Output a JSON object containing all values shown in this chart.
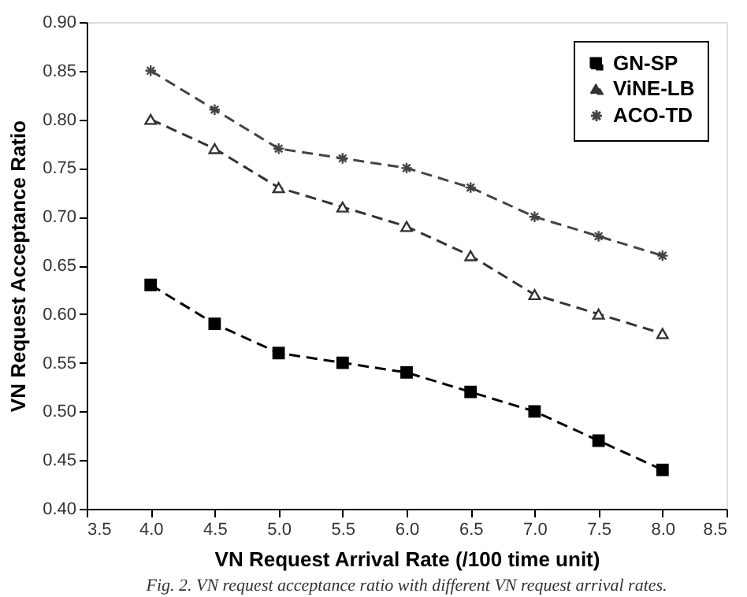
{
  "chart_data": {
    "type": "line",
    "x": [
      4.0,
      4.5,
      5.0,
      5.5,
      6.0,
      6.5,
      7.0,
      7.5,
      8.0
    ],
    "series": [
      {
        "name": "GN-SP",
        "color": "#000000",
        "marker": "square",
        "line_style": "dashed",
        "values": [
          0.63,
          0.59,
          0.56,
          0.55,
          0.54,
          0.52,
          0.5,
          0.47,
          0.44
        ]
      },
      {
        "name": "ViNE-LB",
        "color": "#333333",
        "marker": "triangle",
        "line_style": "dashed",
        "values": [
          0.8,
          0.77,
          0.73,
          0.71,
          0.69,
          0.66,
          0.62,
          0.6,
          0.58
        ]
      },
      {
        "name": "ACO-TD",
        "color": "#444444",
        "marker": "cross",
        "line_style": "dashed",
        "values": [
          0.85,
          0.81,
          0.77,
          0.76,
          0.75,
          0.73,
          0.7,
          0.68,
          0.66
        ]
      }
    ],
    "xlabel": "VN Request Arrival Rate (/100 time unit)",
    "ylabel": "VN Request Acceptance Ratio",
    "xlim": [
      3.5,
      8.5
    ],
    "xticks": [
      {
        "value": 3.5,
        "label": "3.5"
      },
      {
        "value": 4.0,
        "label": "4.0"
      },
      {
        "value": 4.5,
        "label": "4.5"
      },
      {
        "value": 5.0,
        "label": "5.0"
      },
      {
        "value": 5.5,
        "label": "5.5"
      },
      {
        "value": 6.0,
        "label": "6.0"
      },
      {
        "value": 6.5,
        "label": "6.5"
      },
      {
        "value": 7.0,
        "label": "7.0"
      },
      {
        "value": 7.5,
        "label": "7.5"
      },
      {
        "value": 8.0,
        "label": "8.0"
      },
      {
        "value": 8.5,
        "label": "8.5"
      }
    ],
    "ylim": [
      0.4,
      0.9
    ],
    "yticks": [
      {
        "value": 0.4,
        "label": "0.40"
      },
      {
        "value": 0.45,
        "label": "0.45"
      },
      {
        "value": 0.5,
        "label": "0.50"
      },
      {
        "value": 0.55,
        "label": "0.55"
      },
      {
        "value": 0.6,
        "label": "0.60"
      },
      {
        "value": 0.65,
        "label": "0.65"
      },
      {
        "value": 0.7,
        "label": "0.70"
      },
      {
        "value": 0.75,
        "label": "0.75"
      },
      {
        "value": 0.8,
        "label": "0.80"
      },
      {
        "value": 0.85,
        "label": "0.85"
      },
      {
        "value": 0.9,
        "label": "0.90"
      }
    ],
    "grid": false,
    "legend": "top right",
    "annotations": [
      "Fig. 2.  VN request acceptance ratio with different VN request arrival rates."
    ]
  }
}
